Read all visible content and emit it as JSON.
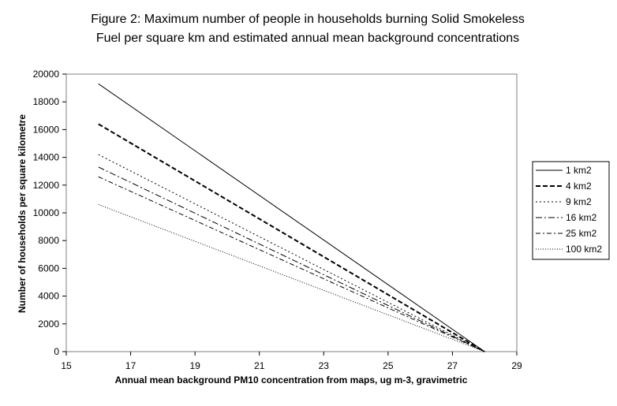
{
  "chart_data": {
    "type": "line",
    "title": [
      "Figure 2: Maximum number of people in households burning Solid Smokeless",
      "Fuel per square km and estimated annual mean background concentrations"
    ],
    "xlabel": "Annual mean background PM10 concentration from maps, ug m-3, gravimetric",
    "ylabel": "Number of households per square kilometre",
    "xlim": [
      15,
      29
    ],
    "ylim": [
      0,
      20000
    ],
    "x_ticks": [
      15,
      17,
      19,
      21,
      23,
      25,
      27,
      29
    ],
    "y_ticks": [
      0,
      2000,
      4000,
      6000,
      8000,
      10000,
      12000,
      14000,
      16000,
      18000,
      20000
    ],
    "grid": false,
    "legend_position": "right",
    "series": [
      {
        "name": "1 km2",
        "dash": "solid",
        "color": "#000000",
        "x": [
          16,
          28
        ],
        "y": [
          19300,
          0
        ]
      },
      {
        "name": "4 km2",
        "dash": "dashed",
        "color": "#000000",
        "x": [
          16,
          28
        ],
        "y": [
          16400,
          0
        ]
      },
      {
        "name": "9 km2",
        "dash": "dotted",
        "color": "#000000",
        "x": [
          16,
          28
        ],
        "y": [
          14200,
          0
        ]
      },
      {
        "name": "16 km2",
        "dash": "longdash-dot",
        "color": "#000000",
        "x": [
          16,
          28
        ],
        "y": [
          13300,
          0
        ]
      },
      {
        "name": "25 km2",
        "dash": "dash-dot",
        "color": "#000000",
        "x": [
          16,
          28
        ],
        "y": [
          12600,
          0
        ]
      },
      {
        "name": "100 km2",
        "dash": "fine-dotted",
        "color": "#000000",
        "x": [
          16,
          28
        ],
        "y": [
          10600,
          0
        ]
      }
    ]
  }
}
